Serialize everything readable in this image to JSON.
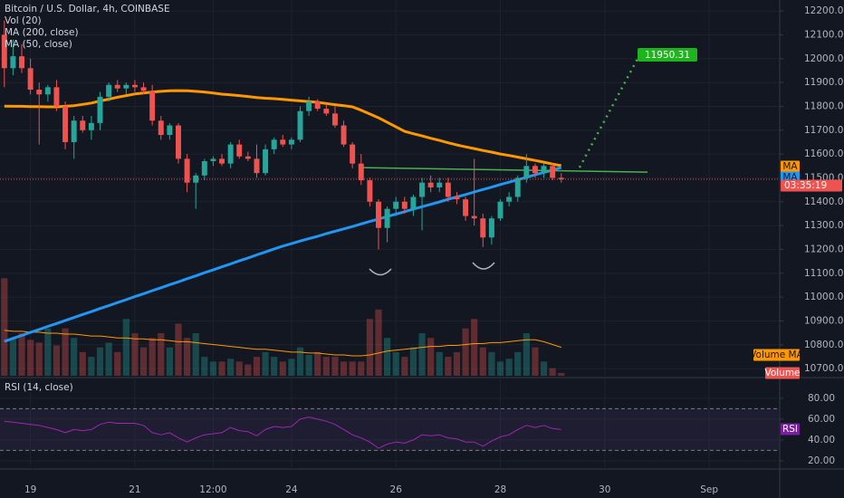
{
  "chart_data": [
    {
      "type": "candlestick",
      "title": "Bitcoin / U.S. Dollar, 4h, COINBASE",
      "indicators": [
        "Vol (20)",
        "MA (200, close)",
        "MA (50, close)"
      ],
      "xlim": [
        -0.5,
        89
      ],
      "xticks": [
        {
          "value": 3,
          "label": "19"
        },
        {
          "value": 15,
          "label": "21"
        },
        {
          "value": 24,
          "label": "12:00"
        },
        {
          "value": 33,
          "label": "24"
        },
        {
          "value": 45,
          "label": "26"
        },
        {
          "value": 57,
          "label": "28"
        },
        {
          "value": 69,
          "label": "30"
        },
        {
          "value": 81,
          "label": "Sep"
        }
      ],
      "ylim": [
        10670,
        12246
      ],
      "yticks": [
        {
          "value": 12200,
          "label": "12200.00"
        },
        {
          "value": 12100,
          "label": "12100.00"
        },
        {
          "value": 12000,
          "label": "12000.00"
        },
        {
          "value": 11900,
          "label": "11900.00"
        },
        {
          "value": 11800,
          "label": "11800.00"
        },
        {
          "value": 11700,
          "label": "11700.00"
        },
        {
          "value": 11600,
          "label": "11600.00"
        },
        {
          "value": 11500,
          "label": "11500.00"
        },
        {
          "value": 11400,
          "label": "11400.00"
        },
        {
          "value": 11300,
          "label": "11300.00"
        },
        {
          "value": 11200,
          "label": "11200.00"
        },
        {
          "value": 11100,
          "label": "11100.00"
        },
        {
          "value": 11000,
          "label": "11000.00"
        },
        {
          "value": 10900,
          "label": "10900.00"
        },
        {
          "value": 10800,
          "label": "10800.00"
        },
        {
          "value": 10700,
          "label": "10700.00"
        }
      ],
      "grid": true,
      "up_color": "#26a69a",
      "down_color": "#ef5350",
      "open": [
        12100,
        11960,
        12010,
        11960,
        11870,
        11850,
        11880,
        11800,
        11650,
        11740,
        11700,
        11730,
        11840,
        11890,
        11875,
        11890,
        11880,
        11865,
        11740,
        11680,
        11720,
        11580,
        11480,
        11510,
        11570,
        11580,
        11560,
        11640,
        11590,
        11580,
        11520,
        11620,
        11660,
        11640,
        11660,
        11780,
        11820,
        11790,
        11770,
        11720,
        11640,
        11560,
        11490,
        11400,
        11290,
        11370,
        11400,
        11370,
        11420,
        11480,
        11460,
        11480,
        11420,
        11410,
        11340,
        11330,
        11250,
        11330,
        11400,
        11420,
        11500,
        11550,
        11520,
        11550,
        11500
      ],
      "high": [
        12160,
        12080,
        12060,
        12000,
        11900,
        11890,
        11910,
        11820,
        11760,
        11760,
        11760,
        11860,
        11900,
        11910,
        11900,
        11910,
        11900,
        11890,
        11760,
        11730,
        11730,
        11600,
        11520,
        11580,
        11590,
        11600,
        11650,
        11660,
        11610,
        11640,
        11640,
        11670,
        11680,
        11670,
        11800,
        11840,
        11830,
        11810,
        11800,
        11740,
        11650,
        11600,
        11500,
        11410,
        11380,
        11420,
        11420,
        11430,
        11500,
        11510,
        11500,
        11500,
        11440,
        11420,
        11580,
        11350,
        11340,
        11410,
        11440,
        11510,
        11600,
        11560,
        11560,
        11560,
        11520
      ],
      "low": [
        11880,
        11930,
        11940,
        11850,
        11640,
        11820,
        11780,
        11620,
        11580,
        11690,
        11660,
        11700,
        11820,
        11860,
        11850,
        11860,
        11850,
        11720,
        11660,
        11660,
        11560,
        11440,
        11370,
        11490,
        11550,
        11550,
        11540,
        11580,
        11570,
        11500,
        11510,
        11600,
        11630,
        11620,
        11650,
        11760,
        11780,
        11760,
        11710,
        11630,
        11540,
        11470,
        11380,
        11200,
        11230,
        11340,
        11350,
        11340,
        11280,
        11440,
        11440,
        11400,
        11390,
        11320,
        11300,
        11210,
        11220,
        11320,
        11380,
        11400,
        11480,
        11500,
        11500,
        11490,
        11480
      ],
      "close": [
        11960,
        12010,
        11960,
        11870,
        11850,
        11880,
        11800,
        11650,
        11740,
        11700,
        11730,
        11840,
        11890,
        11875,
        11890,
        11880,
        11865,
        11740,
        11680,
        11720,
        11580,
        11480,
        11510,
        11570,
        11580,
        11560,
        11640,
        11590,
        11580,
        11520,
        11620,
        11660,
        11640,
        11660,
        11780,
        11820,
        11790,
        11770,
        11720,
        11640,
        11560,
        11490,
        11400,
        11290,
        11370,
        11400,
        11370,
        11420,
        11480,
        11460,
        11480,
        11420,
        11410,
        11340,
        11330,
        11250,
        11330,
        11400,
        11420,
        11500,
        11550,
        11520,
        11550,
        11500,
        11494
      ],
      "series": [
        {
          "name": "MA",
          "color": "#ff9800",
          "values": [
            11801,
            11800,
            11800,
            11799,
            11799,
            11798,
            11798,
            11800,
            11803,
            11808,
            11814,
            11822,
            11830,
            11838,
            11845,
            11852,
            11856,
            11860,
            11863,
            11865,
            11866,
            11865,
            11863,
            11860,
            11856,
            11851,
            11848,
            11845,
            11841,
            11837,
            11834,
            11832,
            11829,
            11826,
            11823,
            11820,
            11817,
            11812,
            11807,
            11803,
            11798,
            11784,
            11768,
            11752,
            11733,
            11714,
            11695,
            11685,
            11676,
            11666,
            11657,
            11647,
            11638,
            11630,
            11623,
            11615,
            11608,
            11600,
            11594,
            11587,
            11580,
            11573,
            11566,
            11558,
            11551
          ]
        },
        {
          "name": "MA",
          "color": "#2196f3",
          "values": [
            10814,
            10827,
            10839,
            10852,
            10864,
            10877,
            10889,
            10902,
            10914,
            10927,
            10939,
            10952,
            10964,
            10977,
            10989,
            11002,
            11014,
            11027,
            11039,
            11052,
            11064,
            11077,
            11089,
            11102,
            11114,
            11127,
            11139,
            11152,
            11164,
            11177,
            11189,
            11202,
            11214,
            11224,
            11235,
            11245,
            11255,
            11266,
            11276,
            11286,
            11296,
            11307,
            11317,
            11327,
            11338,
            11348,
            11358,
            11369,
            11379,
            11389,
            11399,
            11410,
            11420,
            11430,
            11441,
            11451,
            11461,
            11472,
            11482,
            11492,
            11502,
            11513,
            11523,
            11533,
            11544
          ]
        }
      ],
      "volume": {
        "name": "Volume",
        "ylim": [
          0,
          110
        ],
        "values": [
          103,
          40,
          45,
          38,
          35,
          50,
          32,
          50,
          40,
          25,
          20,
          30,
          35,
          25,
          60,
          45,
          30,
          40,
          45,
          30,
          55,
          40,
          45,
          20,
          15,
          15,
          18,
          15,
          12,
          20,
          25,
          20,
          15,
          18,
          30,
          22,
          25,
          20,
          20,
          15,
          15,
          15,
          60,
          70,
          40,
          25,
          20,
          30,
          45,
          40,
          25,
          20,
          25,
          50,
          60,
          30,
          25,
          15,
          18,
          25,
          45,
          30,
          15,
          8,
          3
        ],
        "ma": {
          "name": "Volume MA",
          "color": "#ff9800",
          "values": [
            48,
            47,
            47,
            46,
            46,
            45,
            45,
            44,
            44,
            43,
            42,
            42,
            41,
            40,
            40,
            39,
            39,
            38,
            38,
            37,
            36,
            36,
            35,
            34,
            33,
            32,
            31,
            30,
            29,
            28,
            28,
            27,
            26,
            25,
            25,
            24,
            24,
            23,
            22,
            22,
            21,
            21,
            22,
            24,
            26,
            27,
            28,
            29,
            30,
            31,
            31,
            32,
            32,
            33,
            34,
            34,
            35,
            35,
            36,
            37,
            38,
            38,
            36,
            33,
            30
          ]
        }
      },
      "trendline": {
        "color": "#4caf50",
        "values": [
          11543,
          11524
        ]
      },
      "target_label": "11950.31",
      "countdown": "03:35:19"
    },
    {
      "type": "line",
      "title": "RSI (14, close)",
      "ylim": [
        13,
        99
      ],
      "yticks": [
        {
          "value": 80,
          "label": "80.00"
        },
        {
          "value": 60,
          "label": "60.00"
        },
        {
          "value": 40,
          "label": "40.00"
        },
        {
          "value": 20,
          "label": "20.00"
        }
      ],
      "bands": [
        70,
        30
      ],
      "series": [
        {
          "name": "RSI",
          "color": "#9c27b0",
          "values": [
            58,
            57,
            56,
            55,
            54,
            52,
            50,
            47,
            50,
            49,
            50,
            55,
            57,
            56,
            56,
            56,
            54,
            47,
            45,
            47,
            42,
            38,
            42,
            45,
            46,
            47,
            52,
            49,
            48,
            44,
            50,
            53,
            52,
            53,
            60,
            62,
            60,
            58,
            55,
            50,
            45,
            42,
            38,
            32,
            36,
            38,
            37,
            40,
            45,
            44,
            45,
            42,
            41,
            38,
            38,
            34,
            39,
            43,
            45,
            50,
            54,
            52,
            54,
            51,
            50
          ]
        }
      ]
    }
  ]
}
